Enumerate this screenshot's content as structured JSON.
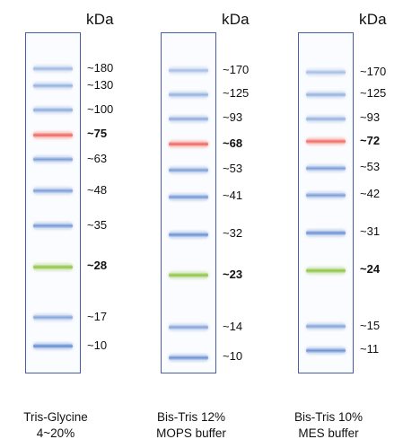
{
  "unit_label": "kDa",
  "colors": {
    "lane_border": "#4a5da8",
    "blue_band": "#4f7ec9",
    "red_band": "#ef5a4e",
    "green_band": "#8cc241"
  },
  "panels": [
    {
      "caption_line1": "Tris-Glycine",
      "caption_line2": "4~20%",
      "bands": [
        {
          "label": "~180",
          "color": "blue",
          "pos": 0.105,
          "intensity": 0.55,
          "bold": false
        },
        {
          "label": "~130",
          "color": "blue",
          "pos": 0.155,
          "intensity": 0.6,
          "bold": false
        },
        {
          "label": "~100",
          "color": "blue",
          "pos": 0.225,
          "intensity": 0.65,
          "bold": false
        },
        {
          "label": "~75",
          "color": "red",
          "pos": 0.298,
          "intensity": 0.95,
          "bold": true
        },
        {
          "label": "~63",
          "color": "blue",
          "pos": 0.37,
          "intensity": 0.75,
          "bold": false
        },
        {
          "label": "~48",
          "color": "blue",
          "pos": 0.462,
          "intensity": 0.75,
          "bold": false
        },
        {
          "label": "~35",
          "color": "blue",
          "pos": 0.565,
          "intensity": 0.8,
          "bold": false
        },
        {
          "label": "~28",
          "color": "green",
          "pos": 0.685,
          "intensity": 1.0,
          "bold": true
        },
        {
          "label": "~17",
          "color": "blue",
          "pos": 0.833,
          "intensity": 0.7,
          "bold": false
        },
        {
          "label": "~10",
          "color": "blue",
          "pos": 0.918,
          "intensity": 0.9,
          "bold": false
        }
      ]
    },
    {
      "caption_line1": "Bis-Tris 12%",
      "caption_line2": "MOPS buffer",
      "bands": [
        {
          "label": "~170",
          "color": "blue",
          "pos": 0.11,
          "intensity": 0.5,
          "bold": false
        },
        {
          "label": "~125",
          "color": "blue",
          "pos": 0.18,
          "intensity": 0.6,
          "bold": false
        },
        {
          "label": "~93",
          "color": "blue",
          "pos": 0.25,
          "intensity": 0.65,
          "bold": false
        },
        {
          "label": "~68",
          "color": "red",
          "pos": 0.325,
          "intensity": 0.95,
          "bold": true
        },
        {
          "label": "~53",
          "color": "blue",
          "pos": 0.4,
          "intensity": 0.75,
          "bold": false
        },
        {
          "label": "~41",
          "color": "blue",
          "pos": 0.48,
          "intensity": 0.8,
          "bold": false
        },
        {
          "label": "~32",
          "color": "blue",
          "pos": 0.59,
          "intensity": 0.85,
          "bold": false
        },
        {
          "label": "~23",
          "color": "green",
          "pos": 0.71,
          "intensity": 1.0,
          "bold": true
        },
        {
          "label": "~14",
          "color": "blue",
          "pos": 0.862,
          "intensity": 0.7,
          "bold": false
        },
        {
          "label": "~10",
          "color": "blue",
          "pos": 0.95,
          "intensity": 0.85,
          "bold": false
        }
      ]
    },
    {
      "caption_line1": "Bis-Tris 10%",
      "caption_line2": "MES buffer",
      "bands": [
        {
          "label": "~170",
          "color": "blue",
          "pos": 0.115,
          "intensity": 0.5,
          "bold": false
        },
        {
          "label": "~125",
          "color": "blue",
          "pos": 0.18,
          "intensity": 0.6,
          "bold": false
        },
        {
          "label": "~93",
          "color": "blue",
          "pos": 0.25,
          "intensity": 0.6,
          "bold": false
        },
        {
          "label": "~72",
          "color": "red",
          "pos": 0.318,
          "intensity": 0.9,
          "bold": true
        },
        {
          "label": "~53",
          "color": "blue",
          "pos": 0.395,
          "intensity": 0.75,
          "bold": false
        },
        {
          "label": "~42",
          "color": "blue",
          "pos": 0.474,
          "intensity": 0.75,
          "bold": false
        },
        {
          "label": "~31",
          "color": "blue",
          "pos": 0.585,
          "intensity": 0.85,
          "bold": false
        },
        {
          "label": "~24",
          "color": "green",
          "pos": 0.695,
          "intensity": 1.0,
          "bold": true
        },
        {
          "label": "~15",
          "color": "blue",
          "pos": 0.86,
          "intensity": 0.7,
          "bold": false
        },
        {
          "label": "~11",
          "color": "blue",
          "pos": 0.93,
          "intensity": 0.85,
          "bold": false
        }
      ]
    }
  ]
}
